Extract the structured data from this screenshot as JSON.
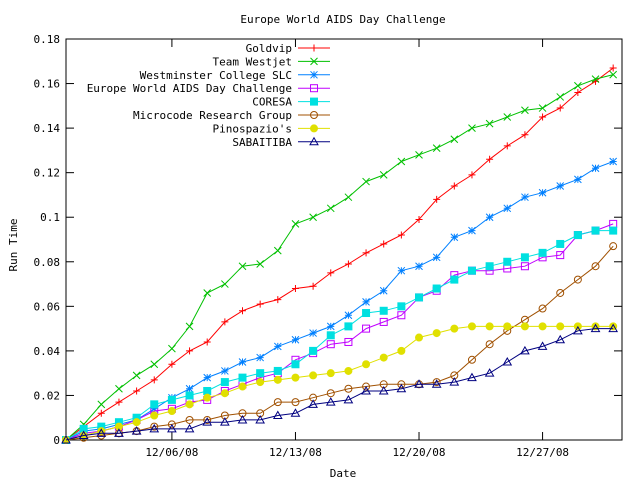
{
  "chart_data": {
    "type": "line",
    "title": "Europe World AIDS Day Challenge",
    "xlabel": "Date",
    "ylabel": "Run Time",
    "x_range": [
      0,
      31.5
    ],
    "ylim": [
      0,
      0.18
    ],
    "grid": false,
    "legend_position": "top-left",
    "x_ticks": [
      {
        "x": 6,
        "label": "12/06/08"
      },
      {
        "x": 13,
        "label": "12/13/08"
      },
      {
        "x": 20,
        "label": "12/20/08"
      },
      {
        "x": 27,
        "label": "12/27/08"
      }
    ],
    "y_ticks": [
      {
        "y": 0,
        "label": "0"
      },
      {
        "y": 0.02,
        "label": "0.02"
      },
      {
        "y": 0.04,
        "label": "0.04"
      },
      {
        "y": 0.06,
        "label": "0.06"
      },
      {
        "y": 0.08,
        "label": "0.08"
      },
      {
        "y": 0.1,
        "label": "0.1"
      },
      {
        "y": 0.12,
        "label": "0.12"
      },
      {
        "y": 0.14,
        "label": "0.14"
      },
      {
        "y": 0.16,
        "label": "0.16"
      },
      {
        "y": 0.18,
        "label": "0.18"
      }
    ],
    "x": [
      0,
      1,
      2,
      3,
      4,
      5,
      6,
      7,
      8,
      9,
      10,
      11,
      12,
      13,
      14,
      15,
      16,
      17,
      18,
      19,
      20,
      21,
      22,
      23,
      24,
      25,
      26,
      27,
      28,
      29,
      30,
      31
    ],
    "series": [
      {
        "name": "Goldvip",
        "color": "#ff0000",
        "marker": "plus",
        "values": [
          0,
          0.006,
          0.012,
          0.017,
          0.022,
          0.027,
          0.034,
          0.04,
          0.044,
          0.053,
          0.058,
          0.061,
          0.063,
          0.068,
          0.069,
          0.075,
          0.079,
          0.084,
          0.088,
          0.092,
          0.099,
          0.108,
          0.114,
          0.119,
          0.126,
          0.132,
          0.137,
          0.145,
          0.149,
          0.156,
          0.161,
          0.167
        ]
      },
      {
        "name": "Team Westjet",
        "color": "#00c000",
        "marker": "cross",
        "values": [
          0,
          0.007,
          0.016,
          0.023,
          0.029,
          0.034,
          0.041,
          0.051,
          0.066,
          0.07,
          0.078,
          0.079,
          0.085,
          0.097,
          0.1,
          0.104,
          0.109,
          0.116,
          0.119,
          0.125,
          0.128,
          0.131,
          0.135,
          0.14,
          0.142,
          0.145,
          0.148,
          0.149,
          0.154,
          0.159,
          0.162,
          0.164
        ]
      },
      {
        "name": "Westminster College SLC",
        "color": "#0080ff",
        "marker": "star",
        "values": [
          0,
          0.004,
          0.005,
          0.007,
          0.009,
          0.014,
          0.019,
          0.023,
          0.028,
          0.031,
          0.035,
          0.037,
          0.042,
          0.045,
          0.048,
          0.051,
          0.056,
          0.062,
          0.067,
          0.076,
          0.078,
          0.082,
          0.091,
          0.094,
          0.1,
          0.104,
          0.109,
          0.111,
          0.114,
          0.117,
          0.122,
          0.125
        ]
      },
      {
        "name": "Europe World AIDS Day Challenge",
        "color": "#c000ff",
        "marker": "square",
        "values": [
          0,
          0.003,
          0.004,
          0.006,
          0.009,
          0.013,
          0.014,
          0.017,
          0.018,
          0.022,
          0.025,
          0.028,
          0.03,
          0.036,
          0.039,
          0.043,
          0.044,
          0.05,
          0.053,
          0.056,
          0.064,
          0.067,
          0.074,
          0.076,
          0.076,
          0.077,
          0.078,
          0.082,
          0.083,
          0.092,
          0.094,
          0.097
        ]
      },
      {
        "name": "CORESA",
        "color": "#00e0e0",
        "marker": "filled-square",
        "values": [
          0,
          0.005,
          0.006,
          0.008,
          0.01,
          0.016,
          0.018,
          0.02,
          0.022,
          0.026,
          0.028,
          0.03,
          0.031,
          0.034,
          0.04,
          0.047,
          0.051,
          0.057,
          0.058,
          0.06,
          0.064,
          0.068,
          0.072,
          0.076,
          0.078,
          0.08,
          0.082,
          0.084,
          0.088,
          0.092,
          0.094,
          0.094
        ]
      },
      {
        "name": "Microcode Research Group",
        "color": "#a05000",
        "marker": "circle",
        "values": [
          0,
          0.001,
          0.002,
          0.003,
          0.004,
          0.006,
          0.007,
          0.009,
          0.009,
          0.011,
          0.012,
          0.012,
          0.017,
          0.017,
          0.019,
          0.021,
          0.023,
          0.024,
          0.025,
          0.025,
          0.025,
          0.026,
          0.029,
          0.036,
          0.043,
          0.049,
          0.054,
          0.059,
          0.066,
          0.072,
          0.078,
          0.087
        ]
      },
      {
        "name": "Pinospazio's",
        "color": "#e0e000",
        "marker": "filled-circle",
        "values": [
          0,
          0.002,
          0.004,
          0.006,
          0.008,
          0.011,
          0.013,
          0.016,
          0.019,
          0.021,
          0.024,
          0.026,
          0.027,
          0.028,
          0.029,
          0.03,
          0.031,
          0.034,
          0.037,
          0.04,
          0.046,
          0.048,
          0.05,
          0.051,
          0.051,
          0.051,
          0.051,
          0.051,
          0.051,
          0.051,
          0.051,
          0.051
        ]
      },
      {
        "name": "SABAITIBA",
        "color": "#000080",
        "marker": "triangle",
        "values": [
          0,
          0.002,
          0.003,
          0.003,
          0.004,
          0.005,
          0.005,
          0.005,
          0.008,
          0.008,
          0.009,
          0.009,
          0.011,
          0.012,
          0.016,
          0.017,
          0.018,
          0.022,
          0.022,
          0.023,
          0.025,
          0.025,
          0.026,
          0.028,
          0.03,
          0.035,
          0.04,
          0.042,
          0.045,
          0.049,
          0.05,
          0.05
        ]
      }
    ]
  }
}
